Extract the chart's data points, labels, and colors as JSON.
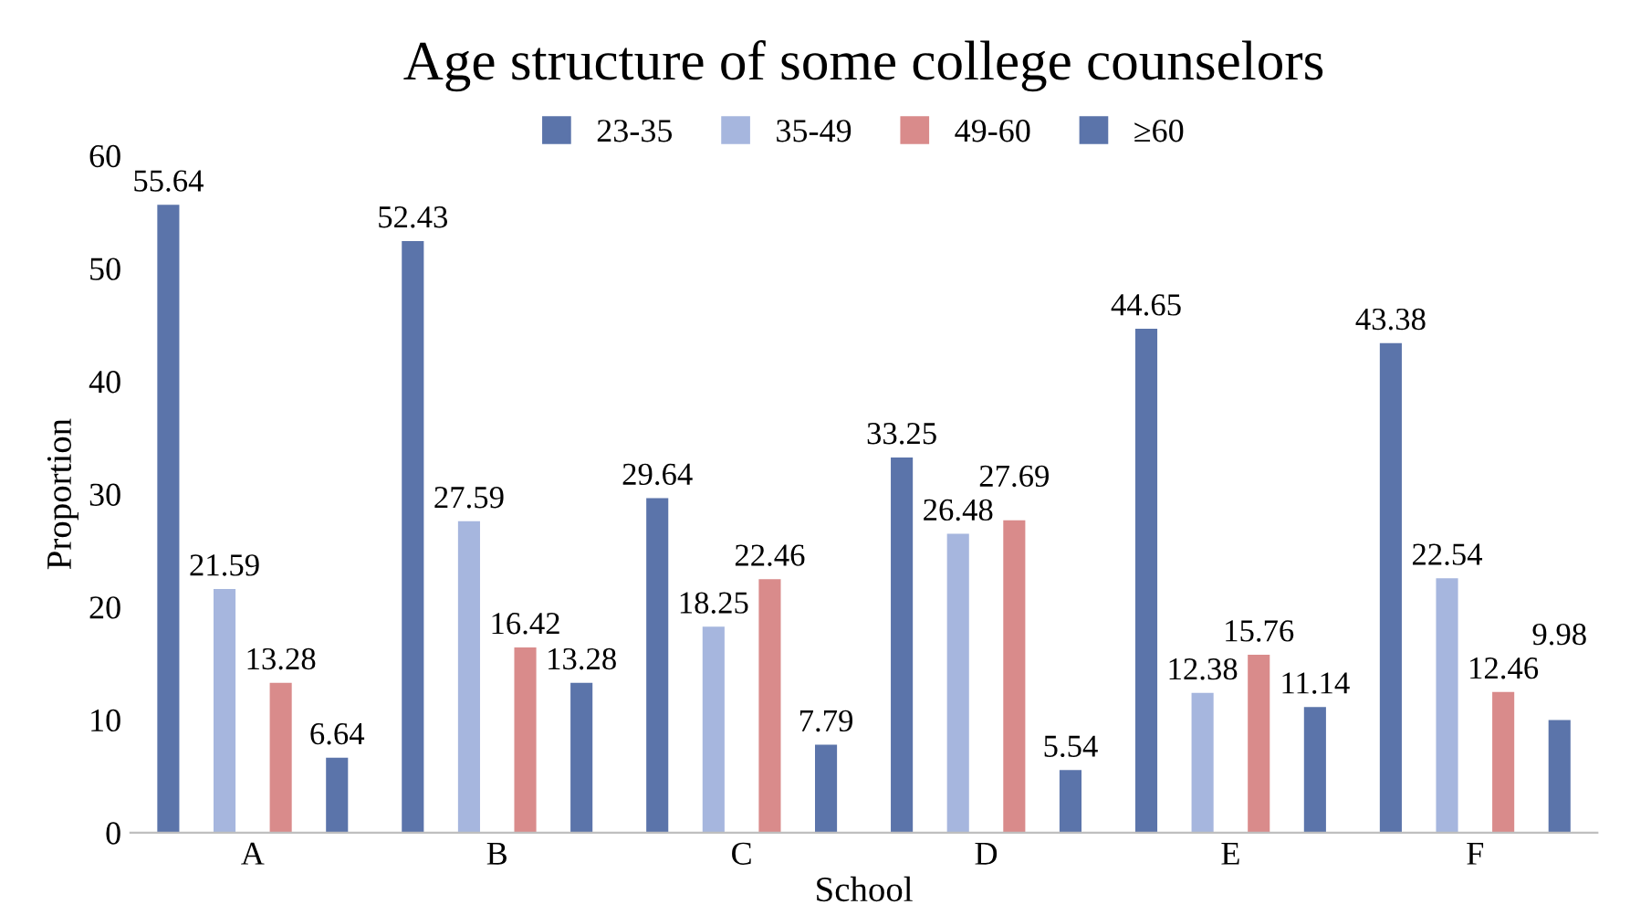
{
  "chart_data": {
    "type": "bar",
    "title": "Age structure of some college counselors",
    "xlabel": "School",
    "ylabel": "Proportion",
    "categories": [
      "A",
      "B",
      "C",
      "D",
      "E",
      "F"
    ],
    "series": [
      {
        "name": "23-35",
        "color": "#5b74aa",
        "values": [
          55.64,
          52.43,
          29.64,
          33.25,
          44.65,
          43.38
        ]
      },
      {
        "name": "35-49",
        "color": "#a6b6de",
        "values": [
          21.59,
          27.59,
          18.25,
          26.48,
          12.38,
          22.54
        ]
      },
      {
        "name": "49-60",
        "color": "#d98b8b",
        "values": [
          13.28,
          16.42,
          22.46,
          27.69,
          15.76,
          12.46
        ]
      },
      {
        "name": "≥60",
        "color": "#5b74aa",
        "values": [
          6.64,
          13.28,
          7.79,
          5.54,
          11.14,
          9.98
        ]
      }
    ],
    "ylim": [
      0,
      60
    ],
    "yticks": [
      0,
      10,
      20,
      30,
      40,
      50,
      60
    ],
    "grid": false,
    "legend": "top",
    "data_labels": true
  }
}
